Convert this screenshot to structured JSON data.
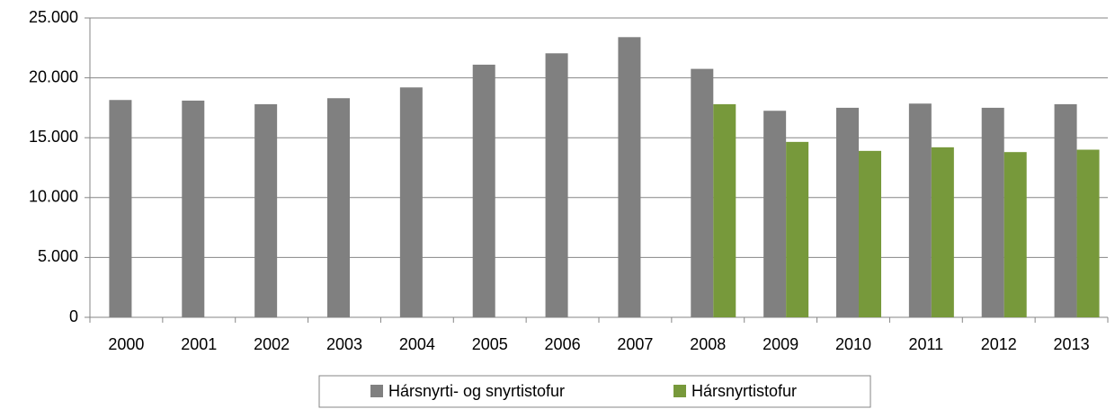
{
  "chart_data": {
    "type": "bar",
    "categories": [
      "2000",
      "2001",
      "2002",
      "2003",
      "2004",
      "2005",
      "2006",
      "2007",
      "2008",
      "2009",
      "2010",
      "2011",
      "2012",
      "2013"
    ],
    "series": [
      {
        "name": "Hársnyrti- og snyrtistofur",
        "color": "#808080",
        "values": [
          18150,
          18100,
          17800,
          18300,
          19200,
          21100,
          22050,
          23400,
          20750,
          17250,
          17500,
          17850,
          17500,
          17800
        ]
      },
      {
        "name": "Hársnyrtistofur",
        "color": "#77993b",
        "values": [
          null,
          null,
          null,
          null,
          null,
          null,
          null,
          null,
          17800,
          14650,
          13900,
          14200,
          13800,
          14000
        ]
      }
    ],
    "ylim": [
      0,
      25000
    ],
    "yticks": [
      0,
      {
        "value": 5000,
        "label": "5.000"
      },
      {
        "value": 10000,
        "label": "10.000"
      },
      {
        "value": 15000,
        "label": "15.000"
      },
      {
        "value": 20000,
        "label": "20.000"
      },
      {
        "value": 25000,
        "label": "25.000"
      }
    ],
    "grid": true,
    "legend": "bottom"
  }
}
